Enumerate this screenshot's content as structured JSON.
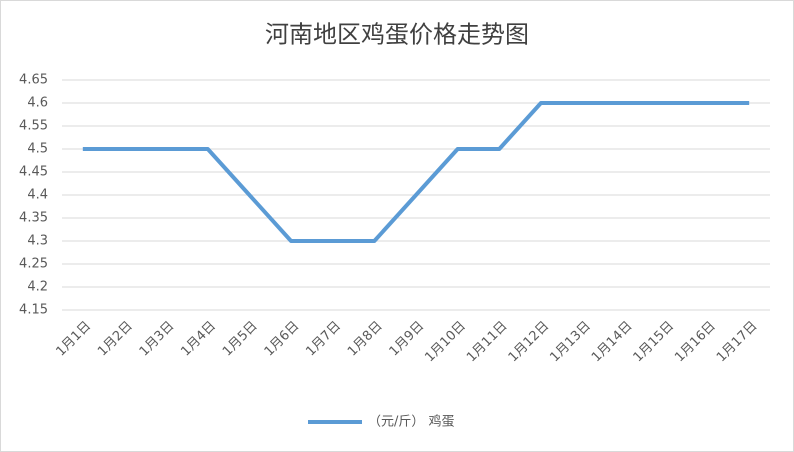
{
  "chart_data": {
    "type": "line",
    "title": "河南地区鸡蛋价格走势图",
    "categories": [
      "1月1日",
      "1月2日",
      "1月3日",
      "1月4日",
      "1月5日",
      "1月6日",
      "1月7日",
      "1月8日",
      "1月9日",
      "1月10日",
      "1月11日",
      "1月12日",
      "1月13日",
      "1月14日",
      "1月15日",
      "1月16日",
      "1月17日"
    ],
    "series": [
      {
        "name": "（元/斤） 鸡蛋",
        "color": "#5b9bd5",
        "values": [
          4.5,
          4.5,
          4.5,
          4.5,
          4.4,
          4.3,
          4.3,
          4.3,
          4.4,
          4.5,
          4.5,
          4.6,
          4.6,
          4.6,
          4.6,
          4.6,
          4.6
        ]
      }
    ],
    "ylim": [
      4.15,
      4.65
    ],
    "yticks": [
      4.15,
      4.2,
      4.25,
      4.3,
      4.35,
      4.4,
      4.45,
      4.5,
      4.55,
      4.6,
      4.65
    ],
    "grid": true
  }
}
